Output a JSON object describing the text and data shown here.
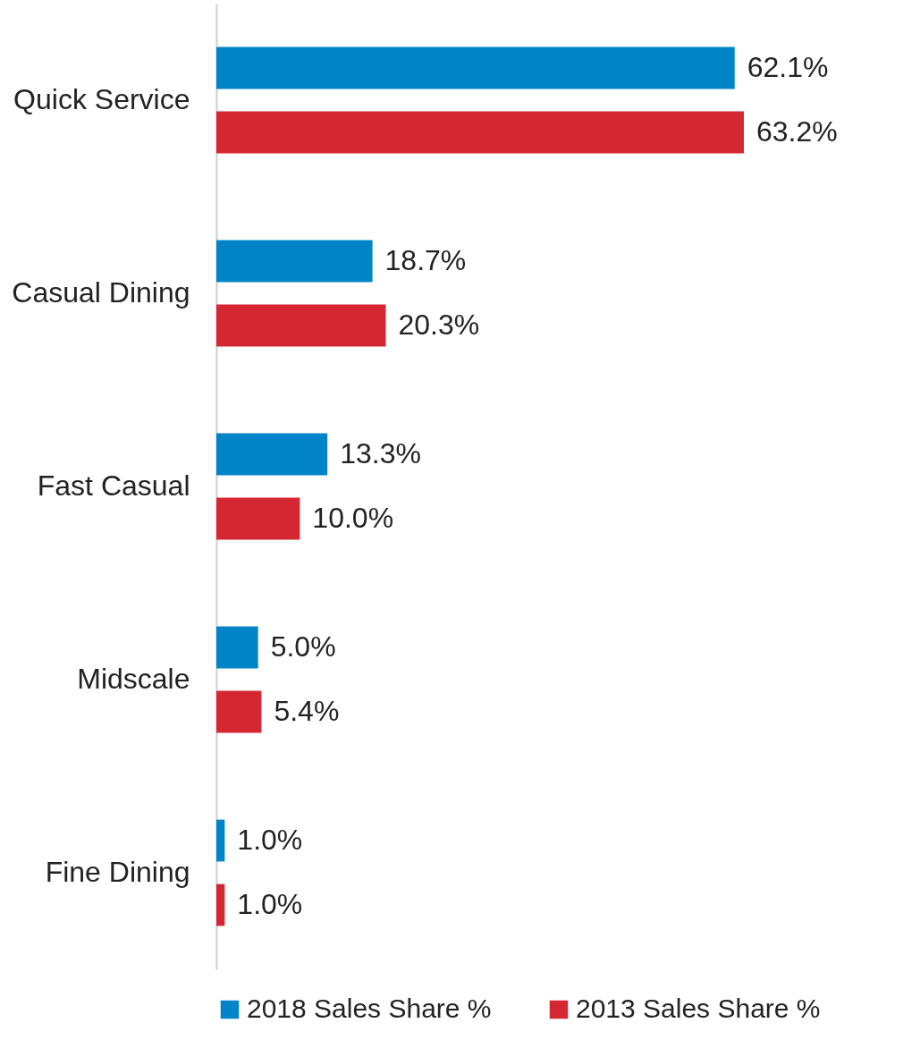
{
  "chart_data": {
    "type": "bar",
    "orientation": "horizontal",
    "categories": [
      "Quick Service",
      "Casual Dining",
      "Fast Casual",
      "Midscale",
      "Fine Dining"
    ],
    "series": [
      {
        "name": "2018 Sales Share %",
        "color": "#0084c8",
        "values": [
          62.1,
          18.7,
          13.3,
          5.0,
          1.0
        ],
        "value_labels": [
          "62.1%",
          "18.7%",
          "13.3%",
          "5.0%",
          "1.0%"
        ]
      },
      {
        "name": "2013 Sales Share %",
        "color": "#d42732",
        "values": [
          63.2,
          20.3,
          10.0,
          5.4,
          1.0
        ],
        "value_labels": [
          "63.2%",
          "20.3%",
          "10.0%",
          "5.4%",
          "1.0%"
        ]
      }
    ],
    "legend": "bottom"
  }
}
